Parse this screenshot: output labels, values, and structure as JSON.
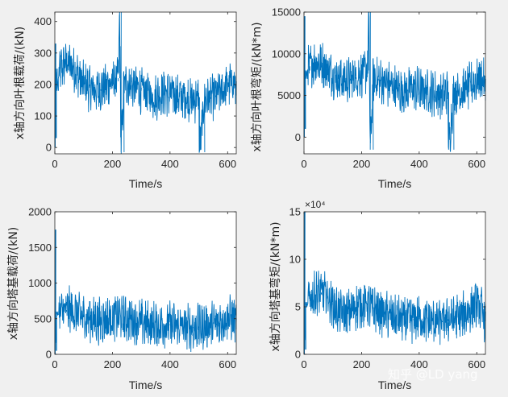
{
  "watermark": "知乎 @LD yang",
  "colors": {
    "line": "#0072BD",
    "axes_bg": "#ffffff",
    "fig_bg": "#f0f0f0",
    "axis": "#262626"
  },
  "chart_data": [
    {
      "type": "line",
      "xlabel": "Time/s",
      "ylabel": "x轴方向叶根载荷/(kN)",
      "xlim": [
        0,
        630
      ],
      "ylim": [
        -20,
        430
      ],
      "xticks": [
        0,
        200,
        400,
        600
      ],
      "xtick_labels": [
        "0",
        "200",
        "400",
        "600"
      ],
      "yticks": [
        0,
        100,
        200,
        300,
        400
      ],
      "ytick_labels": [
        "0",
        "100",
        "200",
        "300",
        "400"
      ],
      "exponent": "",
      "series": [
        {
          "name": "signal",
          "x": [
            0,
            1,
            3,
            5,
            8,
            12,
            20,
            40,
            60,
            80,
            100,
            120,
            140,
            160,
            180,
            200,
            220,
            225,
            230,
            240,
            260,
            280,
            300,
            320,
            340,
            360,
            380,
            400,
            420,
            440,
            460,
            480,
            500,
            502,
            520,
            540,
            560,
            580,
            600,
            620,
            630
          ],
          "y": [
            0,
            330,
            30,
            250,
            180,
            220,
            250,
            270,
            260,
            230,
            200,
            190,
            180,
            185,
            195,
            210,
            220,
            430,
            -15,
            200,
            200,
            190,
            180,
            170,
            160,
            165,
            175,
            170,
            165,
            160,
            155,
            150,
            160,
            -15,
            155,
            160,
            165,
            180,
            200,
            210,
            180
          ]
        }
      ]
    },
    {
      "type": "line",
      "xlabel": "Time/s",
      "ylabel": "x轴方向叶根弯矩/(kN*m)",
      "xlim": [
        0,
        630
      ],
      "ylim": [
        -2000,
        15000
      ],
      "xticks": [
        0,
        200,
        400,
        600
      ],
      "xtick_labels": [
        "0",
        "200",
        "400",
        "600"
      ],
      "yticks": [
        0,
        5000,
        10000,
        15000
      ],
      "ytick_labels": [
        "0",
        "5000",
        "10000",
        "15000"
      ],
      "exponent": "",
      "series": [
        {
          "name": "signal",
          "x": [
            0,
            1,
            3,
            5,
            8,
            12,
            20,
            40,
            60,
            80,
            100,
            120,
            140,
            160,
            180,
            200,
            220,
            225,
            230,
            240,
            260,
            280,
            300,
            320,
            340,
            360,
            380,
            400,
            420,
            440,
            460,
            480,
            500,
            502,
            520,
            540,
            560,
            580,
            600,
            620,
            630
          ],
          "y": [
            0,
            14500,
            1000,
            8000,
            7000,
            8000,
            8500,
            9000,
            8800,
            8200,
            7500,
            7000,
            6800,
            7000,
            7200,
            7600,
            8000,
            15000,
            -1500,
            7000,
            6800,
            6500,
            6200,
            5800,
            5500,
            5600,
            5900,
            5700,
            5500,
            5400,
            5200,
            5000,
            5400,
            -1500,
            5300,
            5500,
            5700,
            6200,
            6800,
            7000,
            6000
          ]
        }
      ]
    },
    {
      "type": "line",
      "xlabel": "Time/s",
      "ylabel": "x轴方向塔基载荷/(kN)",
      "xlim": [
        0,
        630
      ],
      "ylim": [
        0,
        2000
      ],
      "xticks": [
        0,
        200,
        400,
        600
      ],
      "xtick_labels": [
        "0",
        "200",
        "400",
        "600"
      ],
      "yticks": [
        0,
        500,
        1000,
        1500,
        2000
      ],
      "ytick_labels": [
        "0",
        "500",
        "1000",
        "1500",
        "2000"
      ],
      "exponent": "",
      "series": [
        {
          "name": "signal",
          "x": [
            0,
            1,
            3,
            6,
            10,
            20,
            40,
            60,
            80,
            100,
            120,
            140,
            160,
            180,
            200,
            220,
            240,
            260,
            280,
            300,
            320,
            340,
            360,
            380,
            400,
            420,
            440,
            460,
            480,
            500,
            520,
            540,
            560,
            580,
            600,
            620,
            630
          ],
          "y": [
            0,
            1750,
            50,
            600,
            550,
            600,
            620,
            610,
            560,
            520,
            500,
            480,
            470,
            490,
            520,
            530,
            500,
            490,
            470,
            450,
            430,
            420,
            410,
            420,
            410,
            400,
            390,
            380,
            370,
            390,
            400,
            410,
            430,
            470,
            520,
            500,
            450
          ]
        }
      ]
    },
    {
      "type": "line",
      "xlabel": "Time/s",
      "ylabel": "x轴方向塔基弯矩/(kN*m)",
      "xlim": [
        0,
        630
      ],
      "ylim": [
        0,
        15
      ],
      "xticks": [
        0,
        200,
        400,
        600
      ],
      "xtick_labels": [
        "0",
        "200",
        "400",
        "600"
      ],
      "yticks": [
        0,
        5,
        10,
        15
      ],
      "ytick_labels": [
        "0",
        "5",
        "10",
        "15"
      ],
      "exponent": "×10⁴",
      "series": [
        {
          "name": "signal",
          "x": [
            0,
            1,
            3,
            6,
            10,
            20,
            40,
            60,
            80,
            100,
            120,
            140,
            160,
            180,
            200,
            220,
            240,
            260,
            280,
            300,
            320,
            340,
            360,
            380,
            400,
            420,
            440,
            460,
            480,
            500,
            520,
            540,
            560,
            580,
            600,
            620,
            630
          ],
          "y": [
            0,
            15,
            0.5,
            5.5,
            5,
            6,
            6.3,
            6.5,
            6.2,
            5.2,
            4.5,
            4.2,
            4.5,
            5,
            5.2,
            5.3,
            4.8,
            4.5,
            4.2,
            4,
            3.8,
            3.7,
            3.6,
            3.7,
            3.8,
            3.6,
            3.5,
            3.4,
            3.5,
            3.7,
            3.8,
            3.9,
            4.2,
            4.8,
            5.3,
            4.5,
            3.5
          ]
        }
      ]
    }
  ]
}
